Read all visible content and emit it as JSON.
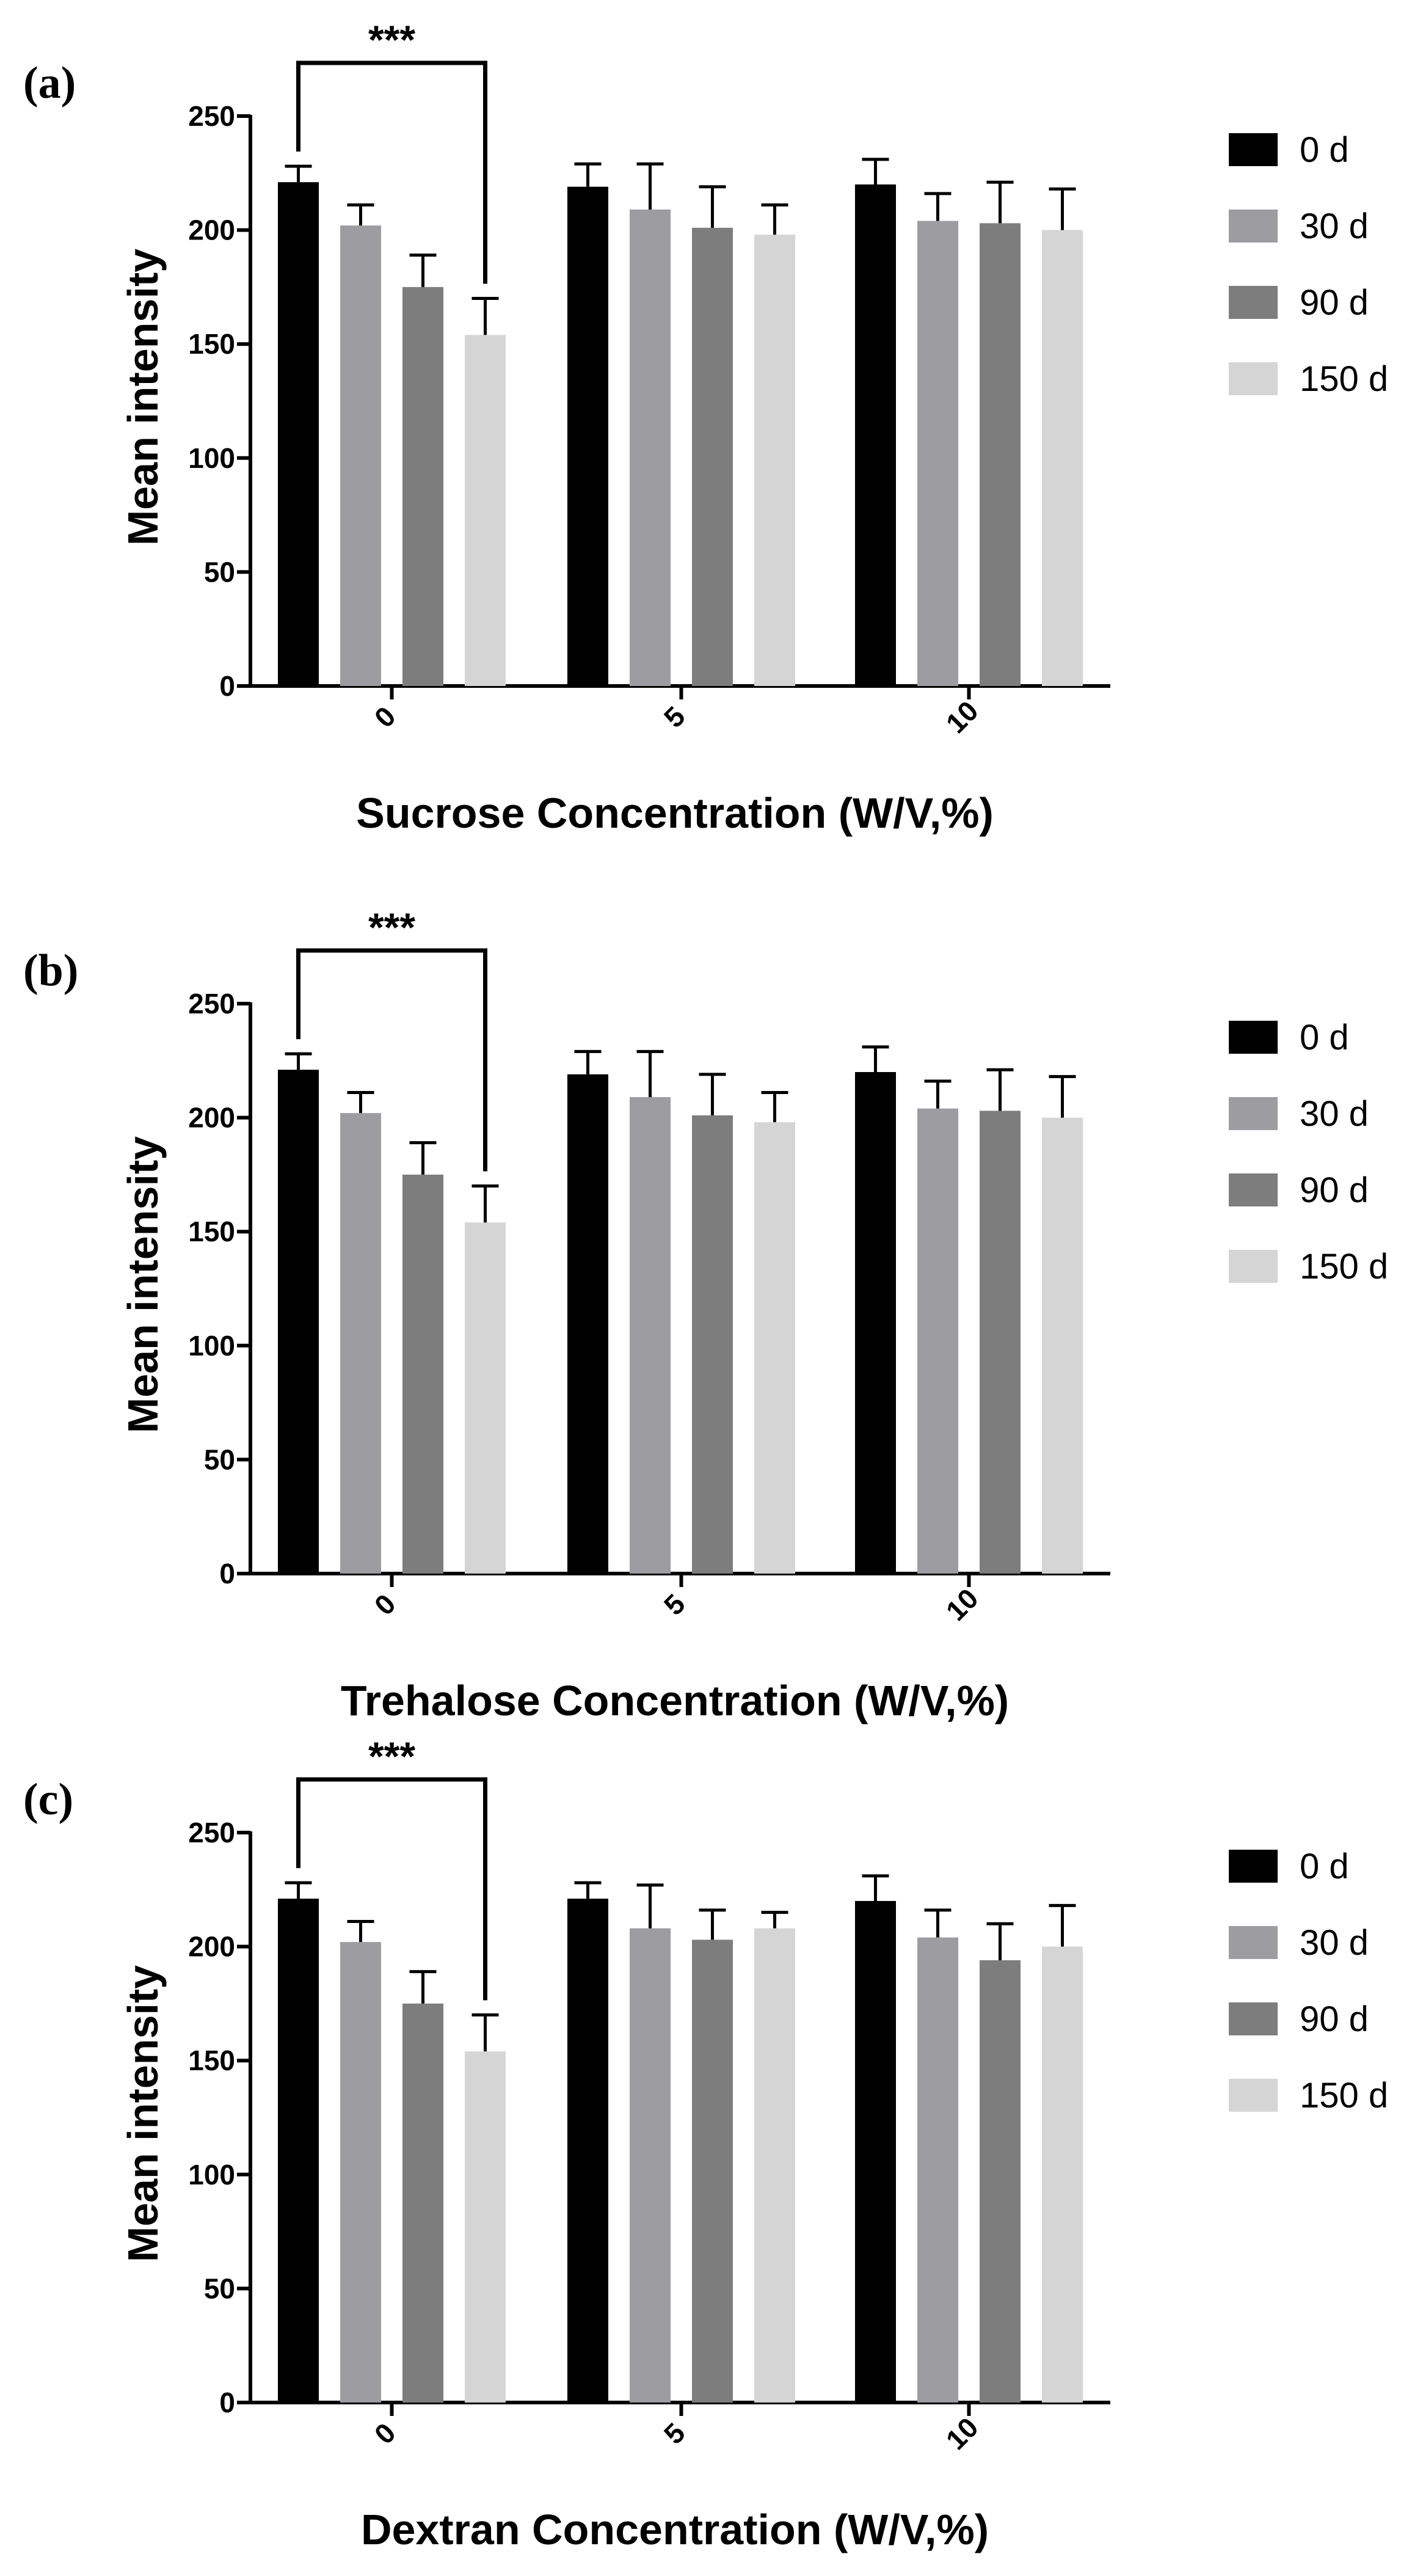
{
  "chart_data": [
    {
      "type": "bar",
      "panel_label": "(a)",
      "title": "",
      "xlabel": "Sucrose Concentration (W/V,%)",
      "ylabel": "Mean intensity",
      "categories": [
        "0",
        "5",
        "10"
      ],
      "ylim": [
        0,
        250
      ],
      "yticks": [
        "0",
        "50",
        "100",
        "150",
        "200",
        "250"
      ],
      "grid": false,
      "legend_position": "right",
      "series": [
        {
          "name": "0 d",
          "color": "#000000",
          "values": [
            221,
            219,
            220
          ],
          "errors": [
            7,
            10,
            11
          ]
        },
        {
          "name": "30 d",
          "color": "#9d9ca1",
          "values": [
            202,
            209,
            204
          ],
          "errors": [
            9,
            20,
            12
          ]
        },
        {
          "name": "90 d",
          "color": "#7d7d7d",
          "values": [
            175,
            201,
            203
          ],
          "errors": [
            14,
            18,
            18
          ]
        },
        {
          "name": "150 d",
          "color": "#d5d5d5",
          "values": [
            154,
            198,
            200
          ],
          "errors": [
            16,
            13,
            18
          ]
        }
      ],
      "significance": {
        "label": "***",
        "from_series": 0,
        "to_series": 3,
        "category": "0"
      }
    },
    {
      "type": "bar",
      "panel_label": "(b)",
      "title": "",
      "xlabel": "Trehalose Concentration (W/V,%)",
      "ylabel": "Mean intensity",
      "categories": [
        "0",
        "5",
        "10"
      ],
      "ylim": [
        0,
        250
      ],
      "yticks": [
        "0",
        "50",
        "100",
        "150",
        "200",
        "250"
      ],
      "grid": false,
      "legend_position": "right",
      "series": [
        {
          "name": "0 d",
          "color": "#000000",
          "values": [
            221,
            219,
            220
          ],
          "errors": [
            7,
            10,
            11
          ]
        },
        {
          "name": "30 d",
          "color": "#9d9ca1",
          "values": [
            202,
            209,
            204
          ],
          "errors": [
            9,
            20,
            12
          ]
        },
        {
          "name": "90 d",
          "color": "#7d7d7d",
          "values": [
            175,
            201,
            203
          ],
          "errors": [
            14,
            18,
            18
          ]
        },
        {
          "name": "150 d",
          "color": "#d5d5d5",
          "values": [
            154,
            198,
            200
          ],
          "errors": [
            16,
            13,
            18
          ]
        }
      ],
      "significance": {
        "label": "***",
        "from_series": 0,
        "to_series": 3,
        "category": "0"
      }
    },
    {
      "type": "bar",
      "panel_label": "(c)",
      "title": "",
      "xlabel": "Dextran Concentration (W/V,%)",
      "ylabel": "Mean intensity",
      "categories": [
        "0",
        "5",
        "10"
      ],
      "ylim": [
        0,
        250
      ],
      "yticks": [
        "0",
        "50",
        "100",
        "150",
        "200",
        "250"
      ],
      "grid": false,
      "legend_position": "right",
      "series": [
        {
          "name": "0 d",
          "color": "#000000",
          "values": [
            221,
            221,
            220
          ],
          "errors": [
            7,
            7,
            11
          ]
        },
        {
          "name": "30 d",
          "color": "#9d9ca1",
          "values": [
            202,
            208,
            204
          ],
          "errors": [
            9,
            19,
            12
          ]
        },
        {
          "name": "90 d",
          "color": "#7d7d7d",
          "values": [
            175,
            203,
            194
          ],
          "errors": [
            14,
            13,
            16
          ]
        },
        {
          "name": "150 d",
          "color": "#d5d5d5",
          "values": [
            154,
            208,
            200
          ],
          "errors": [
            16,
            7,
            18
          ]
        }
      ],
      "significance": {
        "label": "***",
        "from_series": 0,
        "to_series": 3,
        "category": "0"
      }
    }
  ]
}
